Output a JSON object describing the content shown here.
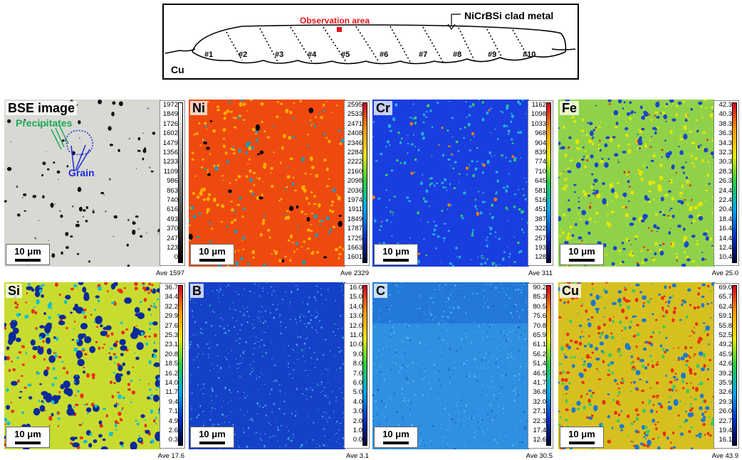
{
  "schematic": {
    "observation_label": "Observation area",
    "clad_label": "NiCrBSi clad metal",
    "substrate_label": "Cu",
    "bead_labels": [
      "#1",
      "#2",
      "#3",
      "#4",
      "#5",
      "#6",
      "#7",
      "#8",
      "#9",
      "#10"
    ]
  },
  "panels": [
    {
      "label": "BSE image",
      "ave": "Ave 1597",
      "scale_bar": "10 μm",
      "colormap": "gray",
      "ticks": [
        "1972",
        "1849",
        "1726",
        "1602",
        "1479",
        "1356",
        "1233",
        "1109",
        "986",
        "863",
        "740",
        "616",
        "493",
        "370",
        "247",
        "123",
        "0"
      ]
    },
    {
      "label": "Ni",
      "ave": "Ave 2329",
      "scale_bar": "10 μm",
      "colormap": "ni",
      "ticks": [
        "2595",
        "2533",
        "2471",
        "2408",
        "2346",
        "2284",
        "2222",
        "2160",
        "2098",
        "2036",
        "1974",
        "1911",
        "1849",
        "1787",
        "1725",
        "1663",
        "1601"
      ]
    },
    {
      "label": "Cr",
      "ave": "Ave 311",
      "scale_bar": "10 μm",
      "colormap": "cr",
      "ticks": [
        "1162",
        "1098",
        "1033",
        "968",
        "904",
        "839",
        "774",
        "710",
        "645",
        "581",
        "516",
        "451",
        "387",
        "322",
        "257",
        "193",
        "128"
      ]
    },
    {
      "label": "Fe",
      "ave": "Ave 25.0",
      "scale_bar": "10 μm",
      "colormap": "fe",
      "ticks": [
        "42.3",
        "40.3",
        "38.3",
        "36.3",
        "34.3",
        "32.3",
        "30.3",
        "28.3",
        "26.3",
        "24.4",
        "22.4",
        "20.4",
        "18.4",
        "16.4",
        "14.4",
        "12.4",
        "10.4"
      ]
    },
    {
      "label": "Si",
      "ave": "Ave 17.6",
      "scale_bar": "10 μm",
      "colormap": "si",
      "ticks": [
        "36.7",
        "34.4",
        "32.2",
        "29.9",
        "27.6",
        "25.3",
        "23.1",
        "20.8",
        "18.5",
        "16.2",
        "14.0",
        "11.7",
        "9.4",
        "7.1",
        "4.9",
        "2.6",
        "0.3"
      ]
    },
    {
      "label": "B",
      "ave": "Ave 3.1",
      "scale_bar": "10 μm",
      "colormap": "b",
      "ticks": [
        "16.0",
        "15.0",
        "14.0",
        "13.0",
        "12.0",
        "11.0",
        "10.0",
        "9.0",
        "8.0",
        "7.0",
        "6.0",
        "5.0",
        "4.0",
        "3.0",
        "2.0",
        "1.0",
        "0.0"
      ]
    },
    {
      "label": "C",
      "ave": "Ave 30.5",
      "scale_bar": "10 μm",
      "colormap": "c",
      "ticks": [
        "90.2",
        "85.3",
        "80.5",
        "75.6",
        "70.8",
        "65.9",
        "61.1",
        "56.2",
        "51.4",
        "46.5",
        "41.7",
        "36.8",
        "32.0",
        "27.1",
        "22.3",
        "17.4",
        "12.6"
      ]
    },
    {
      "label": "Cu",
      "ave": "Ave 43.9",
      "scale_bar": "10 μm",
      "colormap": "cu",
      "ticks": [
        "69.0",
        "65.7",
        "62.4",
        "59.1",
        "55.8",
        "52.5",
        "49.2",
        "45.9",
        "42.6",
        "39.2",
        "35.9",
        "32.6",
        "29.3",
        "26.0",
        "22.7",
        "19.4",
        "16.1"
      ]
    }
  ],
  "annotations": {
    "precipitates": "Precipitates",
    "grain": "Grain"
  },
  "colors": {
    "observation": "#e8131a",
    "precipitates": "#1aaa55",
    "grain": "#1f2bd6"
  }
}
